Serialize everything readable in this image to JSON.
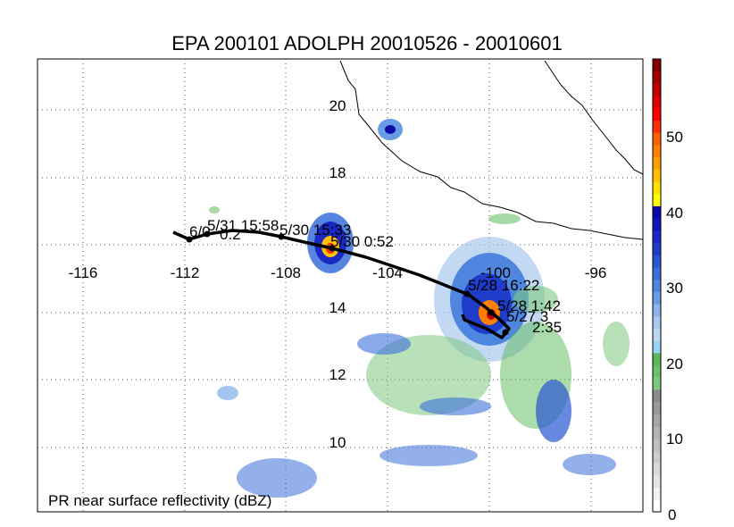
{
  "title": "EPA 200101 ADOLPH 20010526 - 20010601",
  "footer_label": "PR near surface reflectivity (dBZ)",
  "longitude_labels": [
    "-116",
    "-112",
    "-108",
    "-104",
    "-100",
    "-96"
  ],
  "latitude_labels": [
    "20",
    "18",
    "14",
    "12",
    "10"
  ],
  "colorbar": {
    "tick_labels": [
      "50",
      "40",
      "30",
      "20",
      "10",
      "0"
    ],
    "colors": [
      "#ffffff",
      "#f2f2f2",
      "#e6e6e6",
      "#d9d9d9",
      "#cccccc",
      "#bfbfbf",
      "#b3b3b3",
      "#a6a6a6",
      "#999999",
      "#8c8c8c",
      "#7fc97f",
      "#6cc06c",
      "#5ab85a",
      "#9ad3f5",
      "#bcd8f0",
      "#a8c8ee",
      "#8ab4ea",
      "#6a9ce6",
      "#4f86e0",
      "#3a6fd9",
      "#2855d2",
      "#1f3ccb",
      "#1a28c4",
      "#0f18b8",
      "#0a0aa8",
      "#ffff00",
      "#ffe000",
      "#ffc000",
      "#ffa000",
      "#ff8000",
      "#ff6000",
      "#ff3000",
      "#ff0000",
      "#e00000",
      "#c00000",
      "#a00000",
      "#800000"
    ]
  },
  "track_labels": [
    "6/0",
    "5/31 15:58",
    "0.2",
    "5/30 15:33",
    "5/30 0:52",
    "5/28 16:22",
    "5/28 1:42",
    "5/27 3",
    "2:35"
  ]
}
